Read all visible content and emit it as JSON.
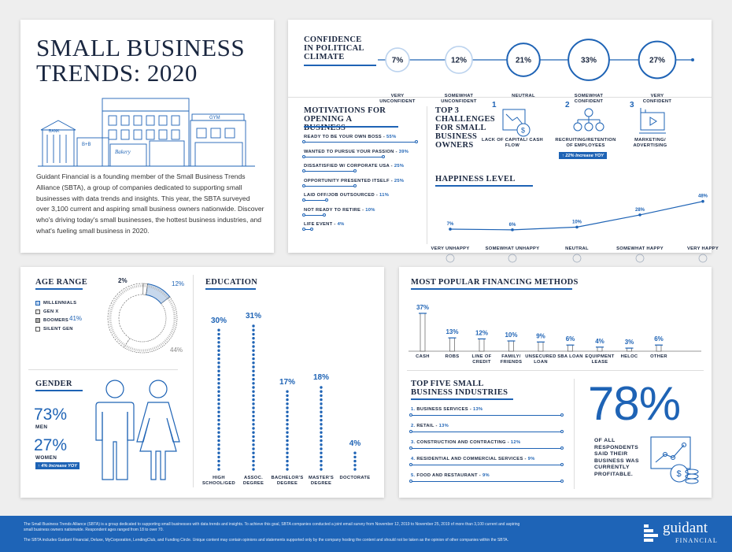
{
  "title": "SMALL BUSINESS TRENDS: 2020",
  "intro": "Guidant Financial is a founding member of the Small Business Trends Alliance (SBTA), a group of companies dedicated to supporting small businesses with data trends and insights. This year, the SBTA surveyed over 3,100 current and aspiring small business owners nationwide. Discover who's driving today's small businesses, the hottest business industries, and what's fueling small business in 2020.",
  "illustration": {
    "bank_sign": "BANK",
    "bakery_sign": "Bakery",
    "gym_sign": "GYM",
    "bnb_sign": "B+B"
  },
  "confidence": {
    "title": "CONFIDENCE IN POLITICAL CLIMATE",
    "items": [
      {
        "value": "7%",
        "label": "VERY UNCONFIDENT"
      },
      {
        "value": "12%",
        "label": "SOMEWHAT UNCONFIDENT"
      },
      {
        "value": "21%",
        "label": "NEUTRAL"
      },
      {
        "value": "33%",
        "label": "SOMEWHAT CONFIDENT"
      },
      {
        "value": "27%",
        "label": "VERY CONFIDENT"
      }
    ]
  },
  "motivations": {
    "title": "MOTIVATIONS FOR OPENING A BUSINESS",
    "items": [
      {
        "label": "READY TO BE YOUR OWN BOSS",
        "value": "55%",
        "fraction": 0.55
      },
      {
        "label": "WANTED TO PURSUE YOUR PASSION",
        "value": "39%",
        "fraction": 0.39
      },
      {
        "label": "DISSATISFIED W/ CORPORATE USA",
        "value": "25%",
        "fraction": 0.25
      },
      {
        "label": "OPPORTUNITY PRESENTED ITSELF",
        "value": "25%",
        "fraction": 0.25
      },
      {
        "label": "LAID OFF/JOB OUTSOURCED",
        "value": "11%",
        "fraction": 0.11
      },
      {
        "label": "NOT READY TO RETIRE",
        "value": "10%",
        "fraction": 0.1
      },
      {
        "label": "LIFE EVENT",
        "value": "4%",
        "fraction": 0.04
      }
    ]
  },
  "challenges": {
    "title": "TOP 3 CHALLENGES FOR SMALL BUSINESS OWNERS",
    "items": [
      {
        "num": "1",
        "label": "LACK OF CAPITAL/ CASH FLOW",
        "icon": "chart-down-dollar-icon"
      },
      {
        "num": "2",
        "label": "RECRUITING/RETENTION OF EMPLOYEES",
        "icon": "people-network-icon",
        "badge": "22% Increase YOY"
      },
      {
        "num": "3",
        "label": "MARKETING/ ADVERTISING",
        "icon": "video-monitor-icon"
      }
    ]
  },
  "happiness": {
    "title": "HAPPINESS LEVEL",
    "items": [
      {
        "label": "VERY UNHAPPY",
        "value": "7%",
        "num": 7
      },
      {
        "label": "SOMEWHAT UNHAPPY",
        "value": "6%",
        "num": 6
      },
      {
        "label": "NEUTRAL",
        "value": "10%",
        "num": 10
      },
      {
        "label": "SOMEWHAT HAPPY",
        "value": "28%",
        "num": 28
      },
      {
        "label": "VERY HAPPY",
        "value": "48%",
        "num": 48
      }
    ]
  },
  "age": {
    "title": "AGE RANGE",
    "legend": [
      "MILLENNIALS",
      "GEN X",
      "BOOMERS",
      "SILENT GEN"
    ],
    "values": [
      {
        "label": "12%",
        "num": 12
      },
      {
        "label": "44%",
        "num": 44
      },
      {
        "label": "41%",
        "num": 41
      },
      {
        "label": "2%",
        "num": 2
      }
    ]
  },
  "gender": {
    "title": "GENDER",
    "men_value": "73%",
    "men_label": "MEN",
    "women_value": "27%",
    "women_label": "WOMEN",
    "badge": "4% Increase YOY"
  },
  "education": {
    "title": "EDUCATION",
    "items": [
      {
        "label": "HIGH SCHOOL/GED",
        "value": "30%",
        "num": 30
      },
      {
        "label": "ASSOC. DEGREE",
        "value": "31%",
        "num": 31
      },
      {
        "label": "BACHELOR'S DEGREE",
        "value": "17%",
        "num": 17
      },
      {
        "label": "MASTER'S DEGREE",
        "value": "18%",
        "num": 18
      },
      {
        "label": "DOCTORATE",
        "value": "4%",
        "num": 4
      }
    ]
  },
  "financing": {
    "title": "MOST POPULAR FINANCING METHODS",
    "items": [
      {
        "label": "CASH",
        "value": "37%",
        "num": 37
      },
      {
        "label": "ROBS",
        "value": "13%",
        "num": 13
      },
      {
        "label": "LINE OF CREDIT",
        "value": "12%",
        "num": 12
      },
      {
        "label": "FAMILY/ FRIENDS",
        "value": "10%",
        "num": 10
      },
      {
        "label": "UNSECURED LOAN",
        "value": "9%",
        "num": 9
      },
      {
        "label": "SBA LOAN",
        "value": "6%",
        "num": 6
      },
      {
        "label": "EQUIPMENT LEASE",
        "value": "4%",
        "num": 4
      },
      {
        "label": "HELOC",
        "value": "3%",
        "num": 3
      },
      {
        "label": "OTHER",
        "value": "6%",
        "num": 6
      }
    ]
  },
  "industries": {
    "title": "TOP FIVE SMALL BUSINESS INDUSTRIES",
    "items": [
      {
        "num": "1.",
        "label": "BUSINESS SERVICES",
        "value": "13%"
      },
      {
        "num": "2.",
        "label": "RETAIL",
        "value": "13%"
      },
      {
        "num": "3.",
        "label": "CONSTRUCTION AND CONTRACTING",
        "value": "12%"
      },
      {
        "num": "4.",
        "label": "RESIDENTIAL AND COMMERCIAL SERVICES",
        "value": "9%"
      },
      {
        "num": "5.",
        "label": "FOOD AND RESTAURANT",
        "value": "9%"
      }
    ]
  },
  "profitable": {
    "value": "78%",
    "text": "OF ALL RESPONDENTS SAID THEIR BUSINESS WAS CURRENTLY PROFITABLE."
  },
  "footer": {
    "line1": "The Small Business Trends Alliance (SBTA) is a group dedicated to supporting small businesses with data trends and insights. To achieve this goal, SBTA companies conducted a joint email survey from November 12, 2019 to November 25, 2019 of more than 3,100 current and aspiring small business owners nationwide. Respondent ages ranged from 18 to over 70.",
    "line2": "The SBTA includes Guidant Financial, Deluxe, MyCorporation, LendingClub, and Funding Circle. Unique content may contain opinions and statements supported only by the company hosting the content and should not be taken as the opinion of other companies within the SBTA.",
    "logo_main": "guidant",
    "logo_sub": "FINANCIAL"
  },
  "colors": {
    "accent": "#1e63b5",
    "navy": "#1a2740",
    "footer_bg": "#1e64b7"
  }
}
